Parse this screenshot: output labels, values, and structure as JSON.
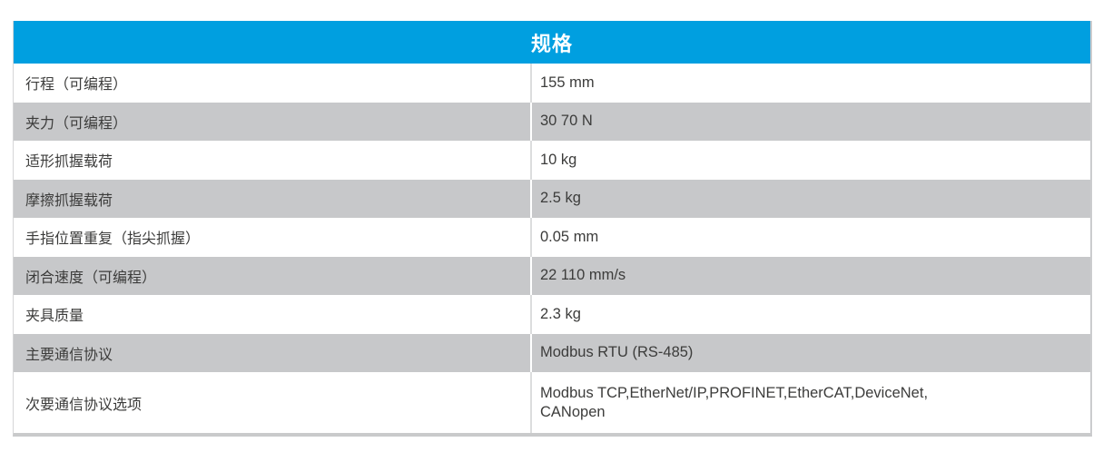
{
  "table": {
    "title": "规格",
    "colors": {
      "header_bg": "#009FE0",
      "alt_row_bg": "#C7C8CA",
      "text": "#3C3C3B"
    },
    "rows": [
      {
        "label": "行程（可编程）",
        "value": "155 mm"
      },
      {
        "label": "夹力（可编程）",
        "value": "30 70 N"
      },
      {
        "label": "适形抓握载荷",
        "value": "10 kg"
      },
      {
        "label": "摩擦抓握载荷",
        "value": "2.5 kg"
      },
      {
        "label": "手指位置重复（指尖抓握）",
        "value": "0.05 mm"
      },
      {
        "label": "闭合速度（可编程）",
        "value": "22 110 mm/s"
      },
      {
        "label": "夹具质量",
        "value": "2.3 kg"
      },
      {
        "label": "主要通信协议",
        "value": "Modbus RTU (RS-485)"
      },
      {
        "label": "次要通信协议选项",
        "value": "Modbus TCP,EtherNet/IP,PROFINET,EtherCAT,DeviceNet,\nCANopen"
      }
    ]
  }
}
